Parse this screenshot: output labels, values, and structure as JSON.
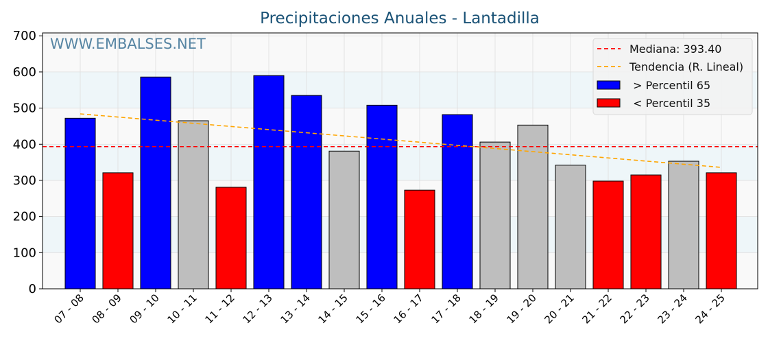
{
  "chart_data": {
    "type": "bar",
    "title": "Precipitaciones Anuales - Lantadilla",
    "watermark": "WWW.EMBALSES.NET",
    "xlabel": "",
    "ylabel": "",
    "ylim": [
      0,
      708
    ],
    "yticks": [
      0,
      100,
      200,
      300,
      400,
      500,
      600,
      700
    ],
    "categories": [
      "07 - 08",
      "08 - 09",
      "09 - 10",
      "10 - 11",
      "11 - 12",
      "12 - 13",
      "13 - 14",
      "14 - 15",
      "15 - 16",
      "16 - 17",
      "17 - 18",
      "18 - 19",
      "19 - 20",
      "20 - 21",
      "21 - 22",
      "22 - 23",
      "23 - 24",
      "24 - 25"
    ],
    "values": [
      472,
      321,
      586,
      465,
      281,
      590,
      535,
      381,
      508,
      273,
      482,
      406,
      453,
      342,
      298,
      315,
      353,
      321
    ],
    "classes": [
      "high",
      "low",
      "high",
      "mid",
      "low",
      "high",
      "high",
      "mid",
      "high",
      "low",
      "high",
      "mid",
      "mid",
      "mid",
      "low",
      "low",
      "mid",
      "low"
    ],
    "median": 393.4,
    "trend": {
      "start": 484,
      "end": 336
    },
    "colors": {
      "high": "#0000ff",
      "low": "#ff0000",
      "mid": "#bebebe",
      "median": "#ff0000",
      "trend": "#ffa500",
      "title": "#1a5276"
    },
    "legend": {
      "position": "top-right",
      "entries": [
        "Mediana: 393.40",
        "Tendencia (R. Lineal)",
        " > Percentil 65",
        " < Percentil 35"
      ]
    },
    "grid": true
  }
}
